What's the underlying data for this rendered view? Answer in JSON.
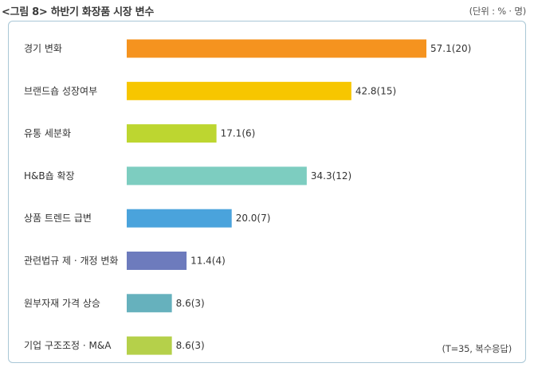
{
  "header": {
    "title": "<그림 8> 하반기 화장품 시장 변수",
    "unit": "(단위 : % · 명)"
  },
  "note": "(T=35, 복수응답)",
  "chart_data": {
    "type": "bar",
    "orientation": "horizontal",
    "categories": [
      "경기 변화",
      "브랜드숍 성장여부",
      "유통 세분화",
      "H&B숍 확장",
      "상품 트렌드 급변",
      "관련법규 제 · 개정 변화",
      "원부자재 가격 상승",
      "기업 구조조정 · M&A"
    ],
    "values": [
      57.1,
      42.8,
      17.1,
      34.3,
      20.0,
      11.4,
      8.6,
      8.6
    ],
    "data_labels": [
      "57.1(20)",
      "42.8(15)",
      "17.1(6)",
      "34.3(12)",
      "20.0(7)",
      "11.4(4)",
      "8.6(3)",
      "8.6(3)"
    ],
    "colors": [
      "#f5931f",
      "#f7c600",
      "#bdd630",
      "#7dcdc0",
      "#4aa3dc",
      "#6d7bbd",
      "#66b1bd",
      "#b5d04a"
    ],
    "xlim": [
      0,
      60
    ]
  }
}
